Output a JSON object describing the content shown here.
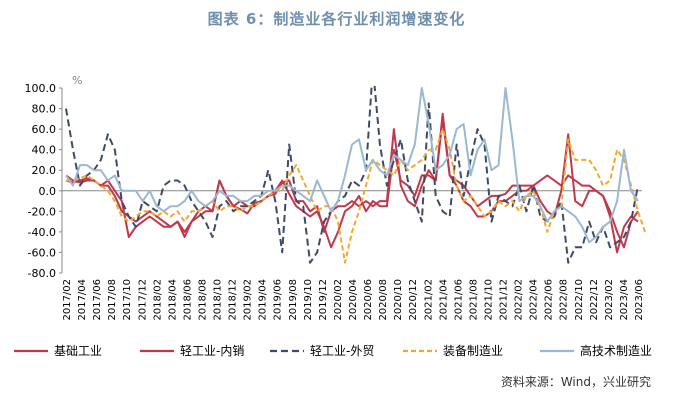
{
  "title": "图表 6：制造业各行业利润增速变化",
  "source": "资料来源：Wind，兴业研究",
  "chart_data": {
    "type": "line",
    "ylabel": "%",
    "ylim": [
      -80,
      100
    ],
    "yticks": [
      "100.0",
      "80.0",
      "60.0",
      "40.0",
      "20.0",
      "0.0",
      "-20.0",
      "-40.0",
      "-60.0",
      "-80.0"
    ],
    "xticks": [
      "2017/02",
      "2017/04",
      "2017/06",
      "2017/08",
      "2017/10",
      "2017/12",
      "2018/02",
      "2018/04",
      "2018/06",
      "2018/08",
      "2018/10",
      "2018/12",
      "2019/02",
      "2019/04",
      "2019/06",
      "2019/08",
      "2019/10",
      "2019/12",
      "2020/02",
      "2020/04",
      "2020/06",
      "2020/08",
      "2020/10",
      "2020/12",
      "2021/02",
      "2021/04",
      "2021/06",
      "2021/08",
      "2021/10",
      "2021/12",
      "2022/02",
      "2022/04",
      "2022/06",
      "2022/08",
      "2022/10",
      "2022/12",
      "2023/02",
      "2023/04",
      "2023/06"
    ],
    "legend": [
      "基础工业",
      "轻工业-内销",
      "轻工业-外贸",
      "装备制造业",
      "高技术制造业"
    ],
    "series": [
      {
        "name": "基础工业",
        "color": "#c0384b",
        "dash": "",
        "values": [
          15,
          10,
          8,
          10,
          10,
          5,
          5,
          -5,
          -20,
          -25,
          -30,
          -25,
          -20,
          -25,
          -30,
          -35,
          -30,
          -40,
          -30,
          -25,
          -20,
          -20,
          10,
          -5,
          -15,
          -18,
          -22,
          -12,
          -10,
          -5,
          -3,
          8,
          10,
          -10,
          -10,
          -20,
          -15,
          -40,
          -20,
          -15,
          -15,
          -10,
          -15,
          -10,
          -15,
          -10,
          -10,
          60,
          5,
          -10,
          -15,
          5,
          20,
          10,
          75,
          15,
          10,
          5,
          -5,
          -15,
          -10,
          -5,
          -5,
          -3,
          5,
          5,
          5,
          5,
          10,
          15,
          10,
          5,
          15,
          10,
          5,
          5,
          0,
          -5,
          -25,
          -60,
          -35,
          -25,
          -30
        ]
      },
      {
        "name": "轻工业-内销",
        "color": "#c0384b",
        "dash": "",
        "values": [
          10,
          8,
          10,
          12,
          10,
          5,
          10,
          0,
          -10,
          -45,
          -35,
          -30,
          -25,
          -30,
          -35,
          -35,
          -30,
          -45,
          -30,
          -20,
          -15,
          -20,
          10,
          -5,
          -15,
          -10,
          -15,
          -15,
          -10,
          -5,
          0,
          10,
          -3,
          -15,
          -20,
          -25,
          -20,
          -35,
          -55,
          -40,
          -20,
          -15,
          -5,
          -20,
          -10,
          -15,
          -15,
          40,
          10,
          5,
          -5,
          15,
          15,
          10,
          70,
          15,
          5,
          -10,
          -15,
          -25,
          -25,
          -20,
          -10,
          -10,
          -5,
          0,
          0,
          5,
          -10,
          -20,
          -25,
          0,
          55,
          -10,
          -15,
          0,
          0,
          -5,
          -20,
          -40,
          -55,
          -30,
          -20
        ]
      },
      {
        "name": "轻工业-外贸",
        "color": "#3e4a66",
        "dash": "7,4",
        "values": [
          80,
          40,
          5,
          15,
          20,
          30,
          55,
          40,
          -10,
          -25,
          -35,
          -10,
          -15,
          -20,
          5,
          10,
          10,
          5,
          -10,
          -20,
          -30,
          -45,
          -15,
          -10,
          -20,
          -15,
          -15,
          -10,
          -5,
          20,
          -10,
          -60,
          45,
          -10,
          -15,
          -70,
          -60,
          -30,
          -20,
          -10,
          -5,
          10,
          5,
          20,
          120,
          45,
          5,
          30,
          50,
          10,
          -10,
          -30,
          85,
          -5,
          -20,
          -25,
          45,
          -5,
          30,
          60,
          45,
          -30,
          -5,
          -10,
          -15,
          5,
          -20,
          5,
          -25,
          -30,
          -25,
          -10,
          -70,
          -55,
          -55,
          -30,
          -50,
          -35,
          -55,
          -50,
          -45,
          -30,
          5
        ]
      },
      {
        "name": "装备制造业",
        "color": "#f0a830",
        "dash": "5,3",
        "values": [
          10,
          10,
          12,
          15,
          10,
          5,
          0,
          -10,
          -25,
          -30,
          -25,
          -20,
          -20,
          -25,
          -20,
          -25,
          -20,
          -30,
          -20,
          -20,
          -15,
          -10,
          -20,
          -15,
          -15,
          -20,
          -15,
          -15,
          -10,
          -5,
          0,
          0,
          15,
          25,
          10,
          -5,
          -20,
          -15,
          -15,
          -30,
          -70,
          -40,
          -20,
          5,
          30,
          25,
          20,
          15,
          30,
          20,
          25,
          30,
          40,
          40,
          60,
          40,
          5,
          -10,
          -5,
          -15,
          -25,
          -20,
          -10,
          -15,
          -10,
          -20,
          -5,
          0,
          -15,
          -40,
          -20,
          -15,
          50,
          30,
          30,
          30,
          20,
          5,
          10,
          40,
          30,
          5,
          -20,
          -40
        ]
      },
      {
        "name": "高技术制造业",
        "color": "#9ab8d2",
        "dash": "",
        "values": [
          15,
          5,
          25,
          25,
          20,
          20,
          10,
          15,
          0,
          0,
          0,
          -10,
          0,
          -15,
          -20,
          -15,
          -15,
          -10,
          0,
          -10,
          -15,
          -10,
          0,
          -5,
          -5,
          -10,
          -10,
          -5,
          -5,
          0,
          0,
          5,
          5,
          0,
          -5,
          -10,
          10,
          -5,
          -20,
          -10,
          15,
          45,
          50,
          20,
          30,
          20,
          15,
          35,
          30,
          25,
          45,
          100,
          65,
          20,
          25,
          35,
          60,
          65,
          15,
          40,
          50,
          20,
          25,
          100,
          50,
          -10,
          -5,
          -5,
          -15,
          -30,
          -20,
          -15,
          -20,
          -25,
          -35,
          -50,
          -45,
          -35,
          -30,
          -10,
          40,
          0,
          -10
        ]
      }
    ]
  }
}
